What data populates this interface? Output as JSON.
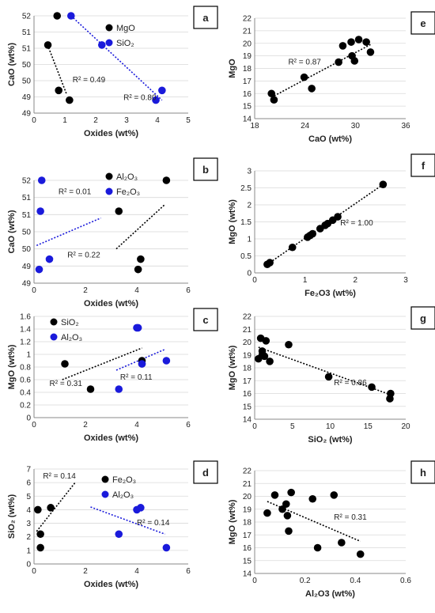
{
  "chart_data": [
    {
      "type": "scatter",
      "panel": "a",
      "xlabel": "Oxides (wt%)",
      "ylabel": "CaO (wt%)",
      "xlim": [
        0,
        5
      ],
      "ylim": [
        49,
        52
      ],
      "xticks": [
        0,
        1,
        2,
        3,
        4,
        5
      ],
      "yticks": [
        49,
        49.5,
        50,
        50.5,
        51,
        51.5,
        52
      ],
      "xtick_labels": [
        "0",
        "1",
        "2",
        "3",
        "4",
        "5"
      ],
      "ytick_labels": [
        "49",
        "49",
        "50",
        "50",
        "51",
        "51",
        "52"
      ],
      "legend_position": "top-right",
      "series": [
        {
          "name": "MgO",
          "color": "#000000",
          "points": [
            [
              0.75,
              52.0
            ],
            [
              0.45,
              51.1
            ],
            [
              0.8,
              49.7
            ],
            [
              1.15,
              49.4
            ]
          ],
          "trend": [
            [
              0.4,
              51.2
            ],
            [
              1.05,
              49.6
            ]
          ]
        },
        {
          "name": "SiO₂",
          "color": "#1a1adb",
          "points": [
            [
              1.2,
              52.0
            ],
            [
              2.2,
              51.1
            ],
            [
              4.15,
              49.7
            ],
            [
              3.95,
              49.4
            ]
          ],
          "trend": [
            [
              1.2,
              52.0
            ],
            [
              4.15,
              49.4
            ]
          ]
        }
      ],
      "annotations": [
        {
          "text": "R² = 0.49",
          "x": 1.25,
          "y": 49.95
        },
        {
          "text": "R² = 0.80",
          "x": 2.9,
          "y": 49.4
        }
      ]
    },
    {
      "type": "scatter",
      "panel": "b",
      "xlabel": "Oxides (wt%)",
      "ylabel": "CaO (wt%)",
      "xlim": [
        0,
        6
      ],
      "ylim": [
        49,
        52
      ],
      "xticks": [
        0,
        2,
        4,
        6
      ],
      "yticks": [
        49,
        49.5,
        50,
        50.5,
        51,
        51.5,
        52
      ],
      "xtick_labels": [
        "0",
        "2",
        "4",
        "6"
      ],
      "ytick_labels": [
        "49",
        "49",
        "50",
        "50",
        "51",
        "51",
        "52"
      ],
      "legend_position": "top-right",
      "series": [
        {
          "name": "Al₂O₃",
          "color": "#000000",
          "points": [
            [
              5.15,
              52.0
            ],
            [
              3.3,
              51.1
            ],
            [
              4.15,
              49.7
            ],
            [
              4.05,
              49.4
            ]
          ],
          "trend": [
            [
              3.2,
              50.0
            ],
            [
              5.1,
              51.3
            ]
          ]
        },
        {
          "name": "Fe₂O₃",
          "color": "#1a1adb",
          "points": [
            [
              0.3,
              52.0
            ],
            [
              0.25,
              51.1
            ],
            [
              0.6,
              49.7
            ],
            [
              0.2,
              49.4
            ]
          ],
          "trend": [
            [
              0.1,
              50.1
            ],
            [
              2.6,
              50.9
            ]
          ]
        }
      ],
      "annotations": [
        {
          "text": "R² = 0.01",
          "x": 0.95,
          "y": 51.6
        },
        {
          "text": "R² = 0.22",
          "x": 1.3,
          "y": 49.75
        }
      ]
    },
    {
      "type": "scatter",
      "panel": "c",
      "xlabel": "Oxides (wt%)",
      "ylabel": "MgO (wt%)",
      "xlim": [
        0,
        6
      ],
      "ylim": [
        0,
        1.6
      ],
      "xticks": [
        0,
        2,
        4,
        6
      ],
      "yticks": [
        0,
        0.2,
        0.4,
        0.6,
        0.8,
        1,
        1.2,
        1.4,
        1.6
      ],
      "xtick_labels": [
        "0",
        "2",
        "4",
        "6"
      ],
      "ytick_labels": [
        "0",
        "0.2",
        "0.4",
        "0.6",
        "0.8",
        "1",
        "1.2",
        "1.4",
        "1.6"
      ],
      "legend_position": "top-center",
      "series": [
        {
          "name": "SiO₂",
          "color": "#000000",
          "points": [
            [
              1.2,
              0.85
            ],
            [
              2.2,
              0.45
            ],
            [
              4.2,
              0.9
            ],
            [
              4.2,
              0.85
            ]
          ],
          "trend": [
            [
              1.1,
              0.6
            ],
            [
              4.2,
              1.1
            ]
          ]
        },
        {
          "name": "Al₂O₃",
          "color": "#1a1adb",
          "points": [
            [
              4.0,
              1.42
            ],
            [
              4.05,
              1.42
            ],
            [
              4.2,
              0.85
            ],
            [
              3.3,
              0.45
            ],
            [
              5.15,
              0.9
            ]
          ],
          "trend": [
            [
              3.2,
              0.75
            ],
            [
              5.1,
              1.08
            ]
          ]
        }
      ],
      "annotations": [
        {
          "text": "R² = 0.31",
          "x": 0.6,
          "y": 0.5
        },
        {
          "text": "R² = 0.11",
          "x": 3.35,
          "y": 0.6
        }
      ]
    },
    {
      "type": "scatter",
      "panel": "d",
      "xlabel": "Oxides (wt%)",
      "ylabel": "SiO₂ (wt%)",
      "xlim": [
        0,
        6
      ],
      "ylim": [
        0,
        7
      ],
      "xticks": [
        0,
        2,
        4,
        6
      ],
      "yticks": [
        0,
        1,
        2,
        3,
        4,
        5,
        6,
        7
      ],
      "xtick_labels": [
        "0",
        "2",
        "4",
        "6"
      ],
      "ytick_labels": [
        "0",
        "1",
        "2",
        "3",
        "4",
        "5",
        "6",
        "7"
      ],
      "legend_position": "top-right",
      "series": [
        {
          "name": "Fe₂O₃",
          "color": "#000000",
          "points": [
            [
              0.15,
              4.0
            ],
            [
              0.25,
              2.2
            ],
            [
              0.25,
              1.2
            ],
            [
              0.65,
              4.15
            ]
          ],
          "trend": [
            [
              0.1,
              2.4
            ],
            [
              1.6,
              6.0
            ]
          ]
        },
        {
          "name": "Al₂O₃",
          "color": "#1a1adb",
          "points": [
            [
              4.0,
              4.0
            ],
            [
              4.15,
              4.15
            ],
            [
              3.3,
              2.2
            ],
            [
              5.15,
              1.2
            ]
          ],
          "trend": [
            [
              2.2,
              4.2
            ],
            [
              5.1,
              2.2
            ]
          ]
        }
      ],
      "annotations": [
        {
          "text": "R² = 0.14",
          "x": 0.35,
          "y": 6.3
        },
        {
          "text": "R² = 0.14",
          "x": 4.0,
          "y": 2.85
        }
      ]
    },
    {
      "type": "scatter",
      "panel": "e",
      "xlabel": "CaO (wt%)",
      "ylabel": "MgO",
      "xlim": [
        18,
        36
      ],
      "ylim": [
        14,
        22
      ],
      "xticks": [
        18,
        24,
        30,
        36
      ],
      "yticks": [
        14,
        15,
        16,
        17,
        18,
        19,
        20,
        21,
        22
      ],
      "xtick_labels": [
        "18",
        "24",
        "30",
        "36"
      ],
      "ytick_labels": [
        "14",
        "15",
        "16",
        "17",
        "18",
        "19",
        "20",
        "21",
        "22"
      ],
      "series": [
        {
          "name": "",
          "color": "#000000",
          "points": [
            [
              20.0,
              16.0
            ],
            [
              20.3,
              15.5
            ],
            [
              23.9,
              17.3
            ],
            [
              24.8,
              16.4
            ],
            [
              28.0,
              18.5
            ],
            [
              28.5,
              19.8
            ],
            [
              29.5,
              20.1
            ],
            [
              29.6,
              19.0
            ],
            [
              29.9,
              18.6
            ],
            [
              30.4,
              20.3
            ],
            [
              31.3,
              20.1
            ],
            [
              31.8,
              19.3
            ]
          ],
          "trend": [
            [
              20.0,
              15.7
            ],
            [
              31.8,
              19.9
            ]
          ]
        }
      ],
      "annotations": [
        {
          "text": "R² = 0.87",
          "x": 22.0,
          "y": 18.3
        }
      ]
    },
    {
      "type": "scatter",
      "panel": "f",
      "xlabel": "Fe₂O3 (wt%)",
      "ylabel": "MgO (wt%)",
      "xlim": [
        0,
        3
      ],
      "ylim": [
        0,
        3
      ],
      "xticks": [
        0,
        1,
        2,
        3
      ],
      "yticks": [
        0,
        0.5,
        1,
        1.5,
        2,
        2.5,
        3
      ],
      "xtick_labels": [
        "0",
        "1",
        "2",
        "3"
      ],
      "ytick_labels": [
        "0",
        "0.5",
        "1",
        "1.5",
        "2",
        "2.5",
        "3"
      ],
      "series": [
        {
          "name": "",
          "color": "#000000",
          "points": [
            [
              0.25,
              0.25
            ],
            [
              0.3,
              0.3
            ],
            [
              0.75,
              0.75
            ],
            [
              1.05,
              1.05
            ],
            [
              1.1,
              1.1
            ],
            [
              1.15,
              1.15
            ],
            [
              1.3,
              1.3
            ],
            [
              1.4,
              1.4
            ],
            [
              1.45,
              1.45
            ],
            [
              1.55,
              1.55
            ],
            [
              1.65,
              1.65
            ],
            [
              2.55,
              2.6
            ]
          ],
          "trend": [
            [
              0.2,
              0.2
            ],
            [
              2.55,
              2.6
            ]
          ]
        }
      ],
      "annotations": [
        {
          "text": "R² = 1.00",
          "x": 1.7,
          "y": 1.4
        }
      ]
    },
    {
      "type": "scatter",
      "panel": "g",
      "xlabel": "SiO₂ (wt%)",
      "ylabel": "MgO (wt%)",
      "xlim": [
        0,
        20
      ],
      "ylim": [
        14,
        22
      ],
      "xticks": [
        0,
        5,
        10,
        15,
        20
      ],
      "yticks": [
        14,
        15,
        16,
        17,
        18,
        19,
        20,
        21,
        22
      ],
      "xtick_labels": [
        "0",
        "5",
        "10",
        "15",
        "20"
      ],
      "ytick_labels": [
        "14",
        "15",
        "16",
        "17",
        "18",
        "19",
        "20",
        "21",
        "22"
      ],
      "series": [
        {
          "name": "",
          "color": "#000000",
          "points": [
            [
              0.5,
              18.7
            ],
            [
              0.8,
              20.3
            ],
            [
              1.0,
              19.3
            ],
            [
              1.0,
              19.0
            ],
            [
              1.3,
              18.9
            ],
            [
              1.5,
              20.1
            ],
            [
              2.0,
              18.5
            ],
            [
              4.5,
              19.8
            ],
            [
              9.8,
              17.3
            ],
            [
              15.5,
              16.5
            ],
            [
              18.0,
              16.0
            ],
            [
              17.9,
              15.6
            ]
          ],
          "trend": [
            [
              0.5,
              19.6
            ],
            [
              18.0,
              15.9
            ]
          ]
        }
      ],
      "annotations": [
        {
          "text": "R² = 0.86",
          "x": 10.5,
          "y": 16.65
        }
      ]
    },
    {
      "type": "scatter",
      "panel": "h",
      "xlabel": "Al₂O3 (wt%)",
      "ylabel": "MgO (wt%)",
      "xlim": [
        0,
        0.6
      ],
      "ylim": [
        14,
        22
      ],
      "xticks": [
        0,
        0.2,
        0.4,
        0.6
      ],
      "yticks": [
        14,
        15,
        16,
        17,
        18,
        19,
        20,
        21,
        22
      ],
      "xtick_labels": [
        "0",
        "0.2",
        "0.4",
        "0.6"
      ],
      "ytick_labels": [
        "14",
        "15",
        "16",
        "17",
        "18",
        "19",
        "20",
        "21",
        "22"
      ],
      "series": [
        {
          "name": "",
          "color": "#000000",
          "points": [
            [
              0.05,
              18.7
            ],
            [
              0.08,
              20.1
            ],
            [
              0.11,
              19.0
            ],
            [
              0.125,
              19.4
            ],
            [
              0.13,
              18.5
            ],
            [
              0.135,
              17.3
            ],
            [
              0.145,
              20.3
            ],
            [
              0.23,
              19.8
            ],
            [
              0.25,
              16.0
            ],
            [
              0.315,
              20.1
            ],
            [
              0.345,
              16.4
            ],
            [
              0.42,
              15.5
            ]
          ],
          "trend": [
            [
              0.05,
              19.6
            ],
            [
              0.42,
              16.5
            ]
          ]
        }
      ],
      "annotations": [
        {
          "text": "R² = 0.31",
          "x": 0.315,
          "y": 18.2
        }
      ]
    }
  ]
}
